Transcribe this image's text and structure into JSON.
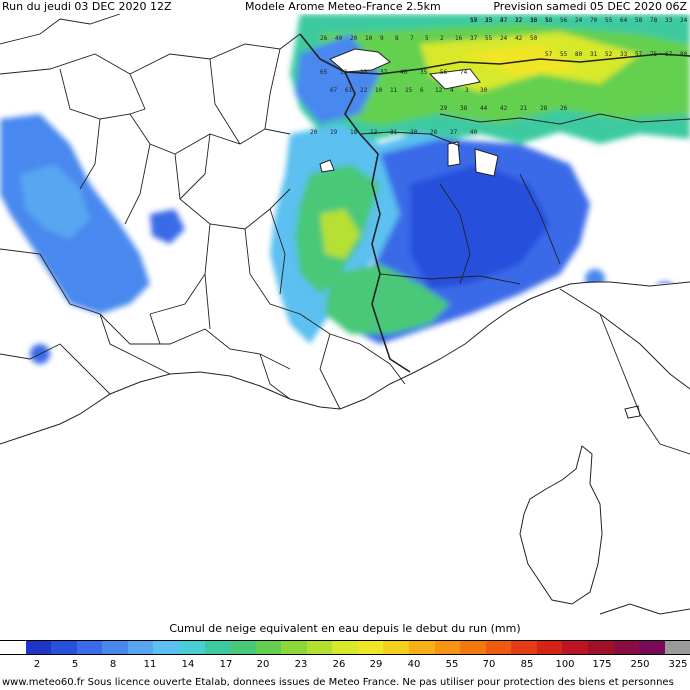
{
  "header": {
    "run": "Run du jeudi 03 DEC 2020 12Z",
    "model": "Modele Arome Meteo-France 2.5km",
    "forecast": "Prevision samedi 05 DEC 2020 06Z"
  },
  "legend": {
    "title": "Cumul de neige equivalent en eau depuis le debut du run (mm)",
    "ticks": [
      "2",
      "5",
      "8",
      "11",
      "14",
      "17",
      "20",
      "23",
      "26",
      "29",
      "40",
      "55",
      "70",
      "85",
      "100",
      "175",
      "250",
      "325"
    ],
    "colors": [
      "#ffffff",
      "#1e36c8",
      "#2850dc",
      "#3a6be8",
      "#4a88ee",
      "#58a6f2",
      "#5cc0f0",
      "#48cfd6",
      "#3ccaa0",
      "#48c878",
      "#64d050",
      "#8cd83a",
      "#b6e030",
      "#d8e82a",
      "#f0e628",
      "#f6d020",
      "#f8b018",
      "#f89414",
      "#f47810",
      "#ee5a10",
      "#e43c14",
      "#d42418",
      "#bc1420",
      "#a01028",
      "#8a0c40",
      "#780a58",
      "#9a9a9a"
    ],
    "accent_blue": "#3a6be8",
    "accent_green": "#8cd83a"
  },
  "footer": {
    "text": "www.meteo60.fr Sous licence ouverte Etalab, donnees issues de Meteo France. Ne pas utiliser pour protection des biens et personnes"
  },
  "map": {
    "values": [
      "19",
      "25",
      "37",
      "17",
      "36",
      "18",
      "56",
      "24",
      "70",
      "55",
      "64",
      "58",
      "78",
      "33",
      "24",
      "26",
      "40",
      "20",
      "10",
      "9",
      "8",
      "7",
      "5",
      "2",
      "16",
      "37",
      "55",
      "24",
      "42",
      "50",
      "57",
      "55",
      "80",
      "31",
      "52",
      "33",
      "57",
      "75",
      "67",
      "80",
      "65",
      "13",
      "23",
      "37",
      "40",
      "35",
      "56",
      "74",
      "67",
      "61",
      "22",
      "10",
      "11",
      "15",
      "6",
      "12",
      "4",
      "3",
      "30",
      "29",
      "38",
      "44",
      "42",
      "21",
      "28",
      "26",
      "20",
      "19",
      "18",
      "12",
      "31",
      "30",
      "28",
      "27",
      "40",
      "57",
      "33",
      "47",
      "22",
      "13",
      "5"
    ]
  }
}
